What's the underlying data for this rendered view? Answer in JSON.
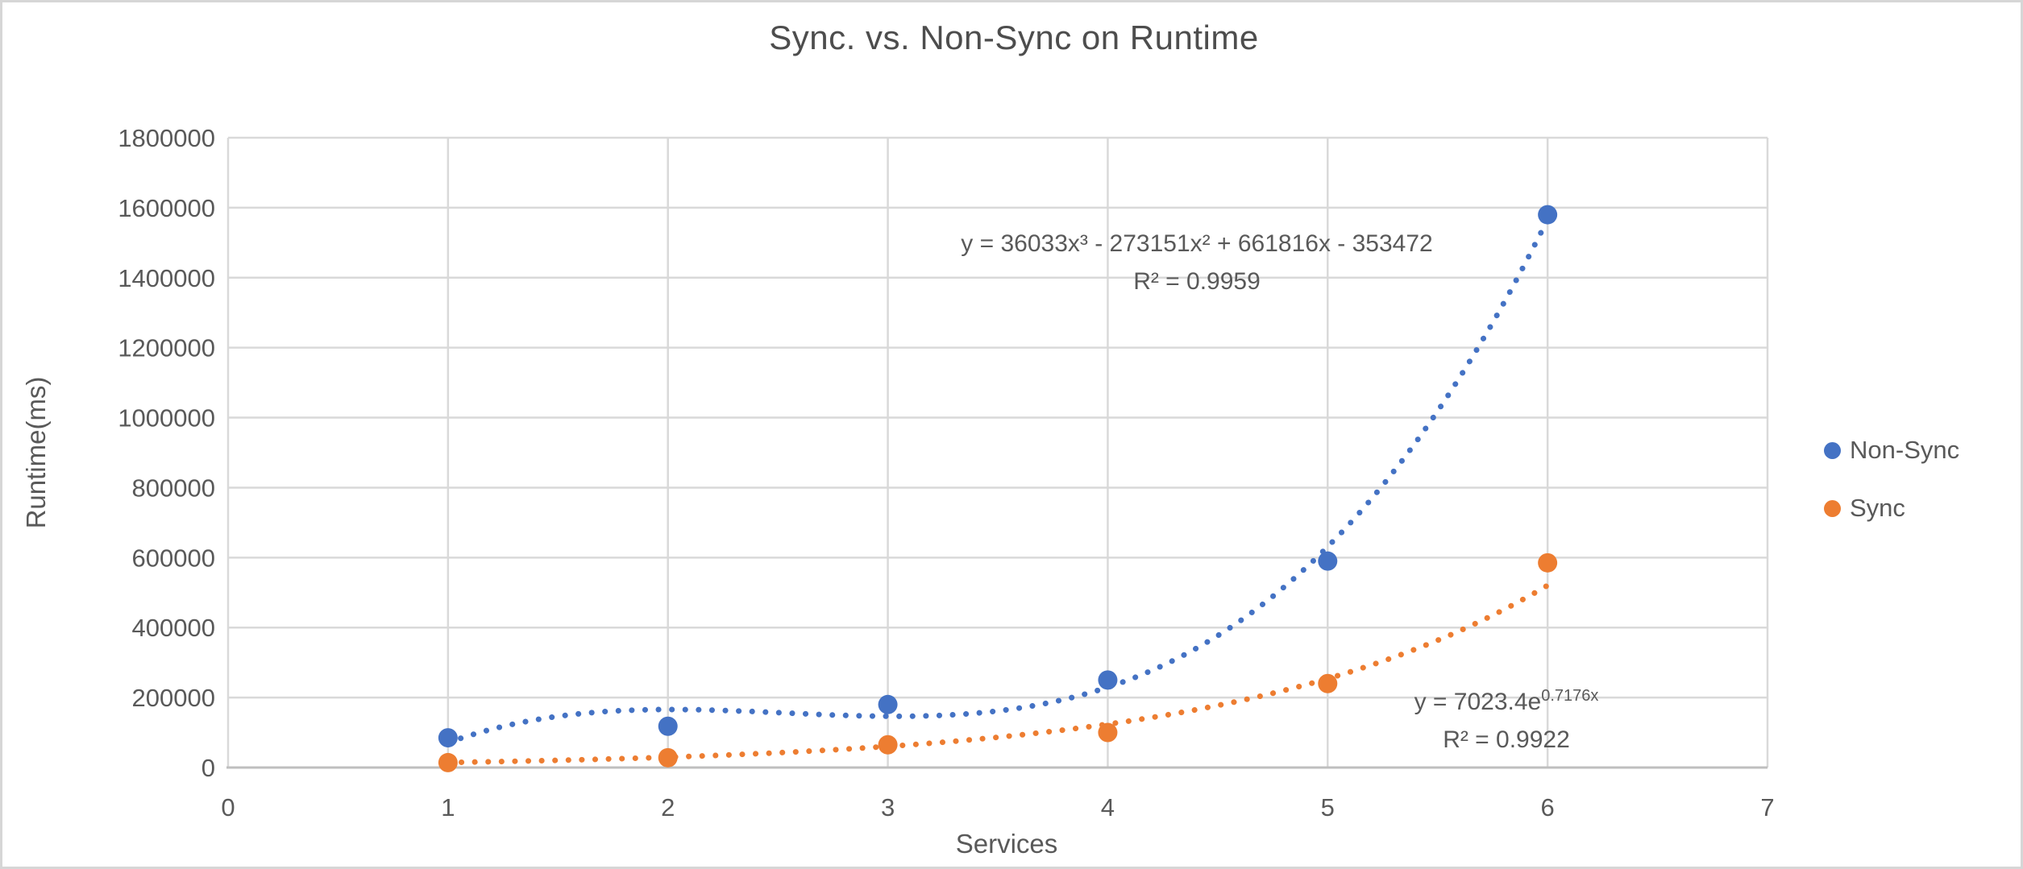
{
  "title": "Sync. vs. Non-Sync on  Runtime",
  "chart_data": {
    "type": "scatter",
    "title": "Sync. vs. Non-Sync on  Runtime",
    "xlabel": "Services",
    "ylabel": "Runtime(ms)",
    "xlim": [
      0,
      7
    ],
    "ylim": [
      0,
      1800000
    ],
    "x_ticks": [
      0,
      1,
      2,
      3,
      4,
      5,
      6,
      7
    ],
    "y_ticks": [
      0,
      200000,
      400000,
      600000,
      800000,
      1000000,
      1200000,
      1400000,
      1600000,
      1800000
    ],
    "grid": true,
    "legend_position": "right",
    "colors": {
      "gridline": "#d9d9d9",
      "axis_line": "#bfbfbf",
      "text": "#595959"
    },
    "series": [
      {
        "name": "Non-Sync",
        "color": "#4472C4",
        "x": [
          1,
          2,
          3,
          4,
          5,
          6
        ],
        "y": [
          85000,
          118000,
          180000,
          250000,
          590000,
          1580000
        ],
        "trendline": {
          "type": "polynomial",
          "order": 3,
          "coefficients": [
            36033,
            -273151,
            661816,
            -353472
          ],
          "domain": [
            1,
            6
          ],
          "equation": "y = 36033x³ - 273151x² + 661816x - 353472",
          "r_squared": "R² = 0.9959"
        }
      },
      {
        "name": "Sync",
        "color": "#ED7D31",
        "x": [
          1,
          2,
          3,
          4,
          5,
          6
        ],
        "y": [
          14000,
          28000,
          65000,
          100000,
          240000,
          585000
        ],
        "trendline": {
          "type": "exponential",
          "a": 7023.4,
          "b": 0.7176,
          "domain": [
            1,
            6
          ],
          "equation_base": "y = 7023.4e",
          "equation_exponent": "0.7176x",
          "r_squared": "R² = 0.9922"
        }
      }
    ]
  }
}
